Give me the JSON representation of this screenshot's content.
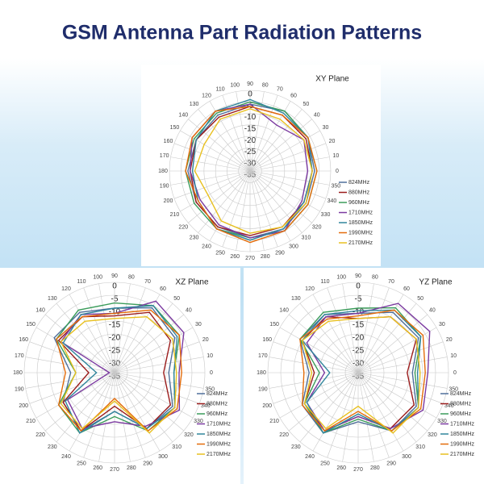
{
  "title": "GSM Antenna Part Radiation Patterns",
  "chart_data": [
    {
      "type": "polar",
      "title": "XY Plane",
      "x": [
        0,
        30,
        60,
        90,
        120,
        150,
        180,
        210,
        240,
        270,
        300,
        330
      ],
      "ylim": [
        -35,
        0
      ],
      "yticks": [
        0,
        -5,
        -10,
        -15,
        -20,
        -25,
        -30,
        -35
      ],
      "xticks": [
        0,
        10,
        20,
        30,
        40,
        50,
        60,
        70,
        80,
        90,
        100,
        110,
        120,
        130,
        140,
        150,
        160,
        170,
        180,
        190,
        200,
        210,
        220,
        230,
        240,
        250,
        260,
        270,
        280,
        290,
        300,
        310,
        320,
        330,
        340,
        350
      ],
      "series": [
        {
          "name": "824MHz",
          "color": "#4f6f9a",
          "values": [
            -7,
            -6,
            -5,
            -6,
            -7,
            -8,
            -8,
            -8,
            -7,
            -6,
            -6,
            -7
          ]
        },
        {
          "name": "880MHz",
          "color": "#9b1c1c",
          "values": [
            -8,
            -7,
            -7,
            -7,
            -8,
            -8,
            -9,
            -8,
            -7,
            -7,
            -7,
            -8
          ]
        },
        {
          "name": "960MHz",
          "color": "#3a9c5a",
          "values": [
            -6,
            -6,
            -5,
            -5,
            -6,
            -7,
            -7,
            -7,
            -6,
            -6,
            -5,
            -6
          ]
        },
        {
          "name": "1710MHz",
          "color": "#7b3aa0",
          "values": [
            -10,
            -8,
            -12,
            -6,
            -5,
            -6,
            -9,
            -10,
            -8,
            -6,
            -5,
            -9
          ]
        },
        {
          "name": "1850MHz",
          "color": "#31859c",
          "values": [
            -8,
            -6,
            -6,
            -4,
            -5,
            -8,
            -10,
            -9,
            -6,
            -5,
            -6,
            -8
          ]
        },
        {
          "name": "1990MHz",
          "color": "#e46c0a",
          "values": [
            -6,
            -6,
            -7,
            -7,
            -5,
            -6,
            -7,
            -9,
            -6,
            -4,
            -5,
            -6
          ]
        },
        {
          "name": "2170MHz",
          "color": "#e8c020",
          "values": [
            -8,
            -8,
            -9,
            -8,
            -9,
            -12,
            -11,
            -14,
            -10,
            -8,
            -7,
            -7
          ]
        }
      ]
    },
    {
      "type": "polar",
      "title": "XZ Plane",
      "x": [
        0,
        30,
        60,
        90,
        120,
        150,
        180,
        210,
        240,
        270,
        300,
        330
      ],
      "ylim": [
        -35,
        0
      ],
      "yticks": [
        0,
        -5,
        -10,
        -15,
        -20,
        -25,
        -30,
        -35
      ],
      "xticks": [
        0,
        10,
        20,
        30,
        40,
        50,
        60,
        70,
        80,
        90,
        100,
        110,
        120,
        130,
        140,
        150,
        160,
        170,
        180,
        190,
        200,
        210,
        220,
        230,
        240,
        250,
        260,
        270,
        280,
        290,
        300,
        310,
        320,
        330,
        340,
        350
      ],
      "series": [
        {
          "name": "824MHz",
          "color": "#4f6f9a",
          "values": [
            -14,
            -8,
            -6,
            -10,
            -8,
            -8,
            -18,
            -12,
            -9,
            -20,
            -10,
            -9
          ]
        },
        {
          "name": "880MHz",
          "color": "#9b1c1c",
          "values": [
            -16,
            -10,
            -8,
            -13,
            -10,
            -10,
            -25,
            -12,
            -9,
            -22,
            -10,
            -10
          ]
        },
        {
          "name": "960MHz",
          "color": "#3a9c5a",
          "values": [
            -12,
            -6,
            -5,
            -8,
            -7,
            -9,
            -20,
            -10,
            -8,
            -18,
            -9,
            -8
          ]
        },
        {
          "name": "1710MHz",
          "color": "#7b3aa0",
          "values": [
            -10,
            -4,
            -3,
            -12,
            -9,
            -11,
            -33,
            -14,
            -10,
            -16,
            -11,
            -6
          ]
        },
        {
          "name": "1850MHz",
          "color": "#31859c",
          "values": [
            -12,
            -7,
            -5,
            -10,
            -9,
            -12,
            -28,
            -13,
            -8,
            -20,
            -10,
            -8
          ]
        },
        {
          "name": "1990MHz",
          "color": "#e46c0a",
          "values": [
            -9,
            -6,
            -7,
            -12,
            -10,
            -9,
            -16,
            -10,
            -9,
            -25,
            -9,
            -7
          ]
        },
        {
          "name": "2170MHz",
          "color": "#e8c020",
          "values": [
            -11,
            -9,
            -10,
            -14,
            -12,
            -11,
            -20,
            -11,
            -10,
            -24,
            -8,
            -8
          ]
        }
      ]
    },
    {
      "type": "polar",
      "title": "YZ Plane",
      "x": [
        0,
        30,
        60,
        90,
        120,
        150,
        180,
        210,
        240,
        270,
        300,
        330
      ],
      "ylim": [
        -35,
        0
      ],
      "yticks": [
        0,
        -5,
        -10,
        -15,
        -20,
        -25,
        -30,
        -35
      ],
      "xticks": [
        0,
        10,
        20,
        30,
        40,
        50,
        60,
        70,
        80,
        90,
        100,
        110,
        120,
        130,
        140,
        150,
        160,
        170,
        180,
        190,
        200,
        210,
        220,
        230,
        240,
        250,
        260,
        270,
        280,
        290,
        300,
        310,
        320,
        330,
        340,
        350
      ],
      "series": [
        {
          "name": "824MHz",
          "color": "#4f6f9a",
          "values": [
            -14,
            -8,
            -8,
            -12,
            -9,
            -9,
            -16,
            -10,
            -8,
            -16,
            -9,
            -9
          ]
        },
        {
          "name": "880MHz",
          "color": "#9b1c1c",
          "values": [
            -16,
            -9,
            -10,
            -14,
            -10,
            -10,
            -18,
            -11,
            -9,
            -18,
            -10,
            -10
          ]
        },
        {
          "name": "960MHz",
          "color": "#3a9c5a",
          "values": [
            -13,
            -7,
            -6,
            -10,
            -8,
            -9,
            -20,
            -11,
            -8,
            -17,
            -9,
            -8
          ]
        },
        {
          "name": "1710MHz",
          "color": "#7b3aa0",
          "values": [
            -8,
            -3,
            -4,
            -12,
            -10,
            -12,
            -22,
            -12,
            -9,
            -18,
            -10,
            -6
          ]
        },
        {
          "name": "1850MHz",
          "color": "#31859c",
          "values": [
            -12,
            -7,
            -7,
            -11,
            -9,
            -10,
            -24,
            -12,
            -8,
            -19,
            -9,
            -8
          ]
        },
        {
          "name": "1990MHz",
          "color": "#e46c0a",
          "values": [
            -9,
            -6,
            -7,
            -13,
            -11,
            -9,
            -14,
            -10,
            -9,
            -20,
            -9,
            -7
          ]
        },
        {
          "name": "2170MHz",
          "color": "#e8c020",
          "values": [
            -11,
            -9,
            -10,
            -14,
            -12,
            -10,
            -17,
            -11,
            -10,
            -22,
            -8,
            -8
          ]
        }
      ]
    }
  ]
}
